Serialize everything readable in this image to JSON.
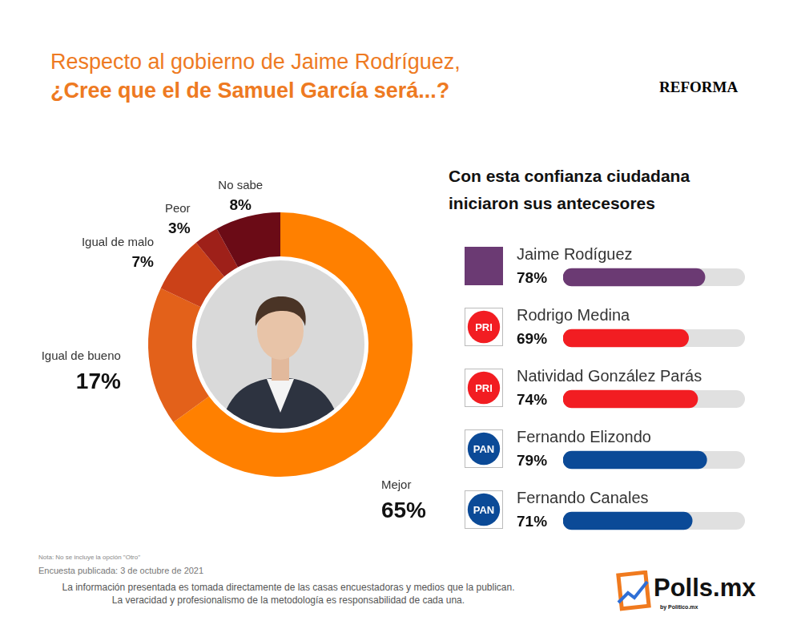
{
  "title": "Respecto al gobierno de Jaime Rodríguez,",
  "subtitle": "¿Cree que el de Samuel García será...?",
  "source": "REFORMA",
  "chart_data": [
    {
      "type": "doughnut",
      "categories": [
        "Mejor",
        "Igual de bueno",
        "Igual de malo",
        "Peor",
        "No sabe"
      ],
      "values": [
        65,
        17,
        7,
        3,
        8
      ],
      "value_labels": [
        "65%",
        "17%",
        "7%",
        "3%",
        "8%"
      ],
      "colors": [
        "#FF8000",
        "#E3611A",
        "#CB4118",
        "#9E2019",
        "#6B0B16"
      ],
      "data_labels": true
    },
    {
      "type": "bar",
      "orientation": "horizontal",
      "title": "Con esta confianza ciudadana iniciaron sus antecesores",
      "categories": [
        "Jaime Rodíguez",
        "Rodrigo Medina",
        "Natividad González Parás",
        "Fernando Elizondo",
        "Fernando Canales"
      ],
      "values": [
        78,
        69,
        74,
        79,
        71
      ],
      "value_labels": [
        "78%",
        "69%",
        "74%",
        "79%",
        "71%"
      ],
      "parties": [
        null,
        "PRI",
        "PRI",
        "PAN",
        "PAN"
      ],
      "colors": [
        "#6B3A73",
        "#F21D22",
        "#F21D22",
        "#0B4A97",
        "#0B4A97"
      ],
      "xlim": [
        0,
        100
      ],
      "tick_labels": false,
      "data_labels": true
    }
  ],
  "footer": {
    "note": "Nota: No se incluye la opción \"Otro\"",
    "published": "Encuesta publicada: 3 de octubre de 2021",
    "disclaimer": [
      "La información presentada es tomada directamente de las casas encuestadoras y medios que la publican.",
      "La veracidad y profesionalismo de la metodología es responsabilidad de cada una."
    ]
  },
  "logo": {
    "name": "Polls.mx",
    "by": "by Politico.mx"
  }
}
